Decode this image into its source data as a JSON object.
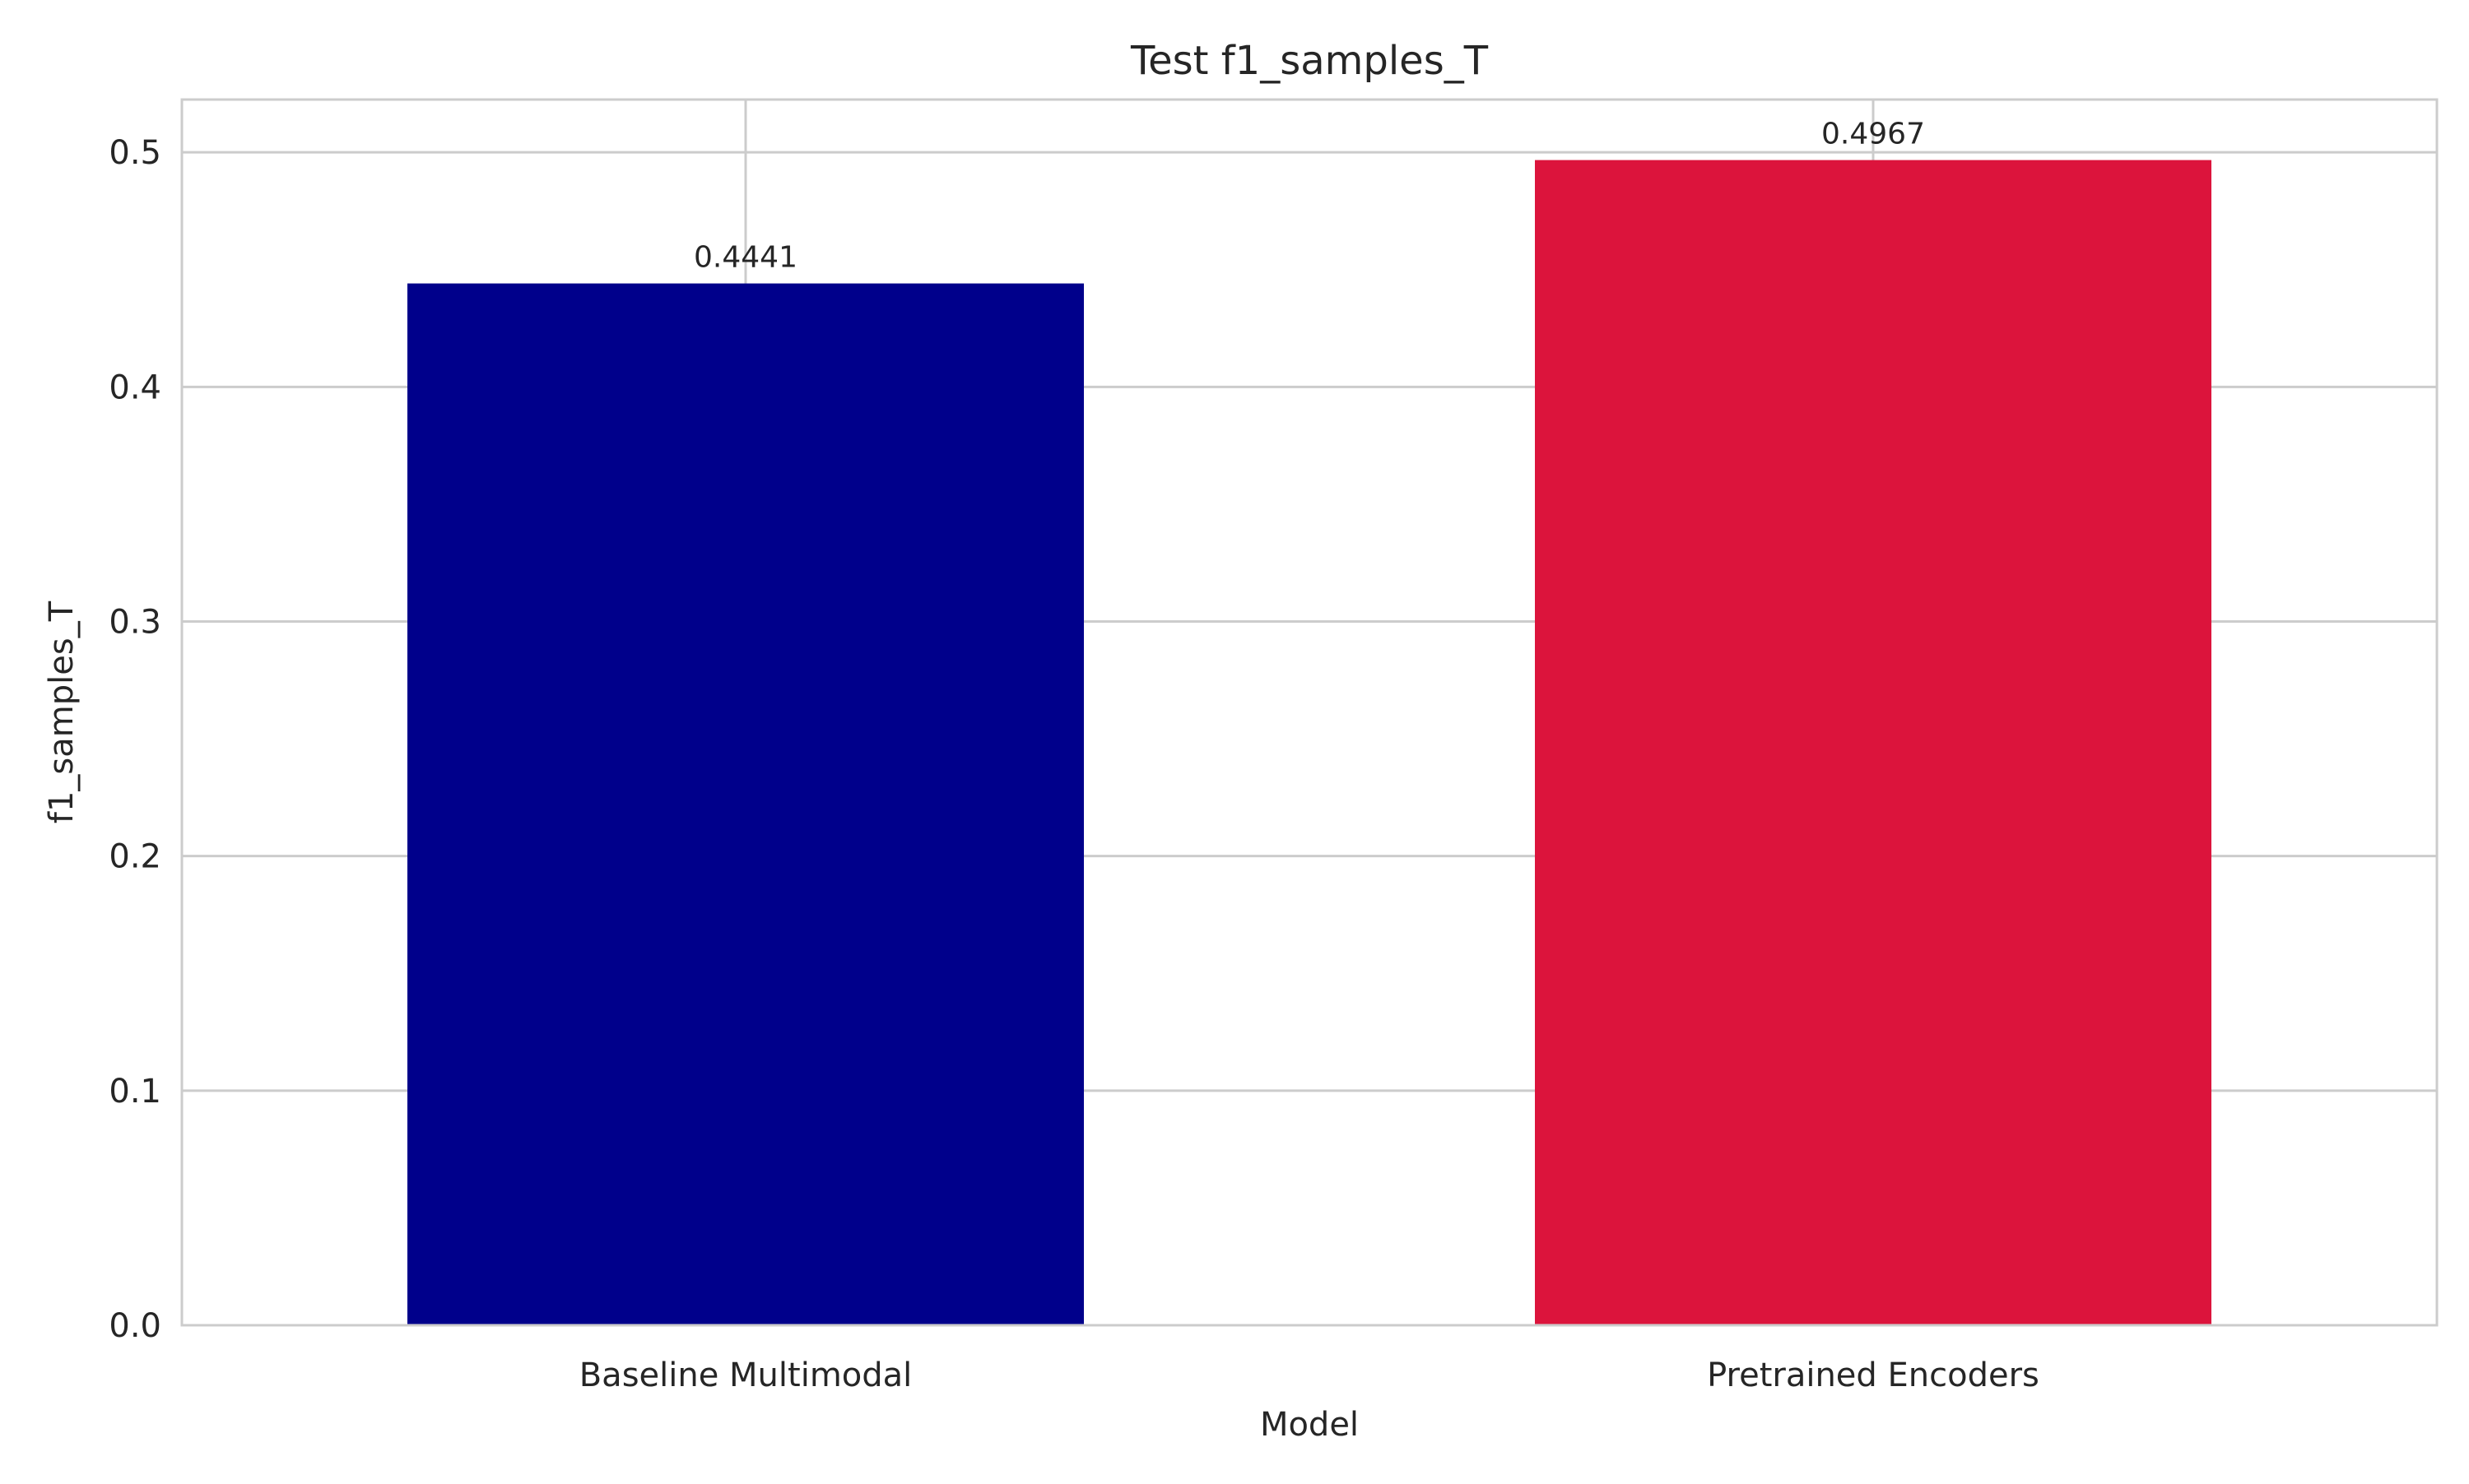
{
  "chart_data": {
    "type": "bar",
    "title": "Test f1_samples_T",
    "xlabel": "Model",
    "ylabel": "f1_samples_T",
    "categories": [
      "Baseline Multimodal",
      "Pretrained Encoders"
    ],
    "values": [
      0.4441,
      0.4967
    ],
    "value_labels": [
      "0.4441",
      "0.4967"
    ],
    "colors": [
      "#00008b",
      "#dc143c"
    ],
    "ylim": [
      0,
      0.5225
    ],
    "yticks": [
      0.0,
      0.1,
      0.2,
      0.3,
      0.4,
      0.5
    ],
    "ytick_labels": [
      "0.0",
      "0.1",
      "0.2",
      "0.3",
      "0.4",
      "0.5"
    ],
    "grid": true,
    "legend": "none"
  }
}
